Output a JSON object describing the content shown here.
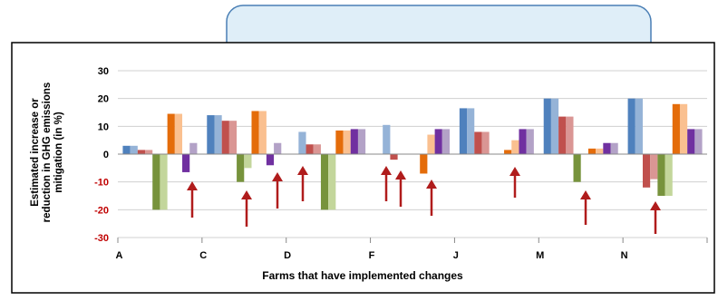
{
  "colors": {
    "callout_fill": "#dfeef8",
    "callout_stroke": "#4a7fb5",
    "arrow": "#b01c1c",
    "grid": "#d0d0d0"
  },
  "chart_data": {
    "type": "bar",
    "title": "",
    "xlabel": "Farms that have implemented changes",
    "ylabel": "Estimated increase or reduction in GHG emissions mitigation (in %)",
    "ylabel_lines": [
      "Estimated increase or",
      "reduction in GHG emissions",
      "mitigation (in %)"
    ],
    "ylim": [
      -30,
      30
    ],
    "yticks": [
      30,
      20,
      10,
      0,
      -10,
      -20,
      -30
    ],
    "grid": true,
    "legend": "none",
    "categories": [
      "A",
      "C",
      "D",
      "F",
      "J",
      "M",
      "N"
    ],
    "series": [
      {
        "color": "#4f81bd",
        "values": [
          3,
          14,
          0,
          0,
          16.5,
          20,
          20
        ]
      },
      {
        "color": "#95b3d7",
        "values": [
          3,
          14,
          8,
          10.5,
          16.5,
          20,
          20
        ]
      },
      {
        "color": "#c0504d",
        "values": [
          1.5,
          12,
          3.5,
          -2,
          8,
          13.5,
          -12
        ]
      },
      {
        "color": "#da9694",
        "values": [
          1.5,
          12,
          3.5,
          0,
          8,
          13.5,
          -9
        ]
      },
      {
        "color": "#77933c",
        "values": [
          -20,
          -10,
          -20,
          0,
          0,
          -10,
          -15
        ]
      },
      {
        "color": "#c3d69b",
        "values": [
          -20,
          -5,
          -20,
          0,
          0,
          0,
          -15
        ]
      },
      {
        "color": "#e46c0a",
        "values": [
          14.5,
          15.5,
          8.5,
          -7,
          1.5,
          2,
          18
        ]
      },
      {
        "color": "#fac090",
        "values": [
          14.5,
          15.5,
          8.5,
          7,
          5,
          2,
          18
        ]
      },
      {
        "color": "#7030a0",
        "values": [
          -6.5,
          -4,
          9,
          9,
          9,
          4,
          9
        ]
      },
      {
        "color": "#b3a2c7",
        "values": [
          4,
          4,
          9,
          9,
          9,
          4,
          9
        ]
      }
    ]
  }
}
